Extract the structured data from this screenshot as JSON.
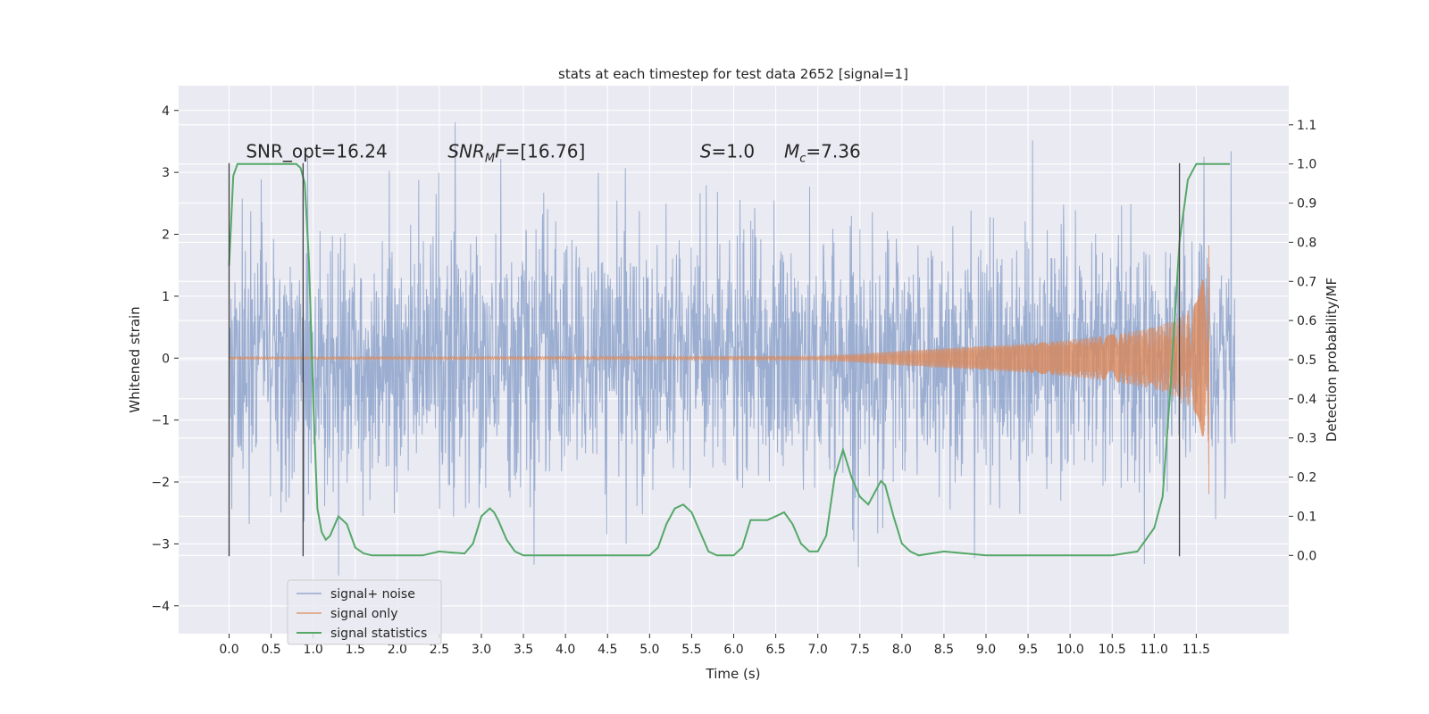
{
  "chart_data": {
    "type": "line",
    "title": "stats at each timestep for test data 2652 [signal=1]",
    "xlabel": "Time (s)",
    "ylabel_left": "Whitened strain",
    "ylabel_right": "Detection probability/MF",
    "xlim": [
      -0.6,
      12.6
    ],
    "ylim_left": [
      -4.45,
      4.4
    ],
    "ylim_right": [
      -0.2,
      1.2
    ],
    "xticks": [
      0.0,
      0.5,
      1.0,
      1.5,
      2.0,
      2.5,
      3.0,
      3.5,
      4.0,
      4.5,
      5.0,
      5.5,
      6.0,
      6.5,
      7.0,
      7.5,
      8.0,
      8.5,
      9.0,
      9.5,
      10.0,
      10.5,
      11.0,
      11.5
    ],
    "xtick_labels": [
      "0.0",
      "0.5",
      "1.0",
      "1.5",
      "2.0",
      "2.5",
      "3.0",
      "3.5",
      "4.0",
      "4.5",
      "5.0",
      "5.5",
      "6.0",
      "6.5",
      "7.0",
      "7.5",
      "8.0",
      "8.5",
      "9.0",
      "9.5",
      "10.0",
      "10.5",
      "11.0",
      "11.5"
    ],
    "yticks_left": [
      -4,
      -3,
      -2,
      -1,
      0,
      1,
      2,
      3,
      4
    ],
    "ytick_labels_left": [
      "−4",
      "−3",
      "−2",
      "−1",
      "0",
      "1",
      "2",
      "3",
      "4"
    ],
    "yticks_right": [
      0.0,
      0.1,
      0.2,
      0.3,
      0.4,
      0.5,
      0.6,
      0.7,
      0.8,
      0.9,
      1.0,
      1.1
    ],
    "ytick_labels_right": [
      "0.0",
      "0.1",
      "0.2",
      "0.3",
      "0.4",
      "0.5",
      "0.6",
      "0.7",
      "0.8",
      "0.9",
      "1.0",
      "1.1"
    ],
    "grid": true,
    "legend_placement": "lower-left",
    "colors": {
      "background": "#eaeaf2",
      "grid": "#ffffff",
      "noise": "#4c72b0",
      "signal": "#dd8452",
      "stats": "#55a868",
      "vline": "#404040"
    },
    "annotations": [
      {
        "parts": [
          {
            "t": "SNR_opt=16.24",
            "i": false
          }
        ],
        "x": 0.2
      },
      {
        "parts": [
          {
            "t": "SNR",
            "i": true
          },
          {
            "t": "M",
            "i": true,
            "sub": true
          },
          {
            "t": "F",
            "i": true
          },
          {
            "t": "=[16.76]",
            "i": false
          }
        ],
        "x": 2.6
      },
      {
        "parts": [
          {
            "t": "S",
            "i": true
          },
          {
            "t": "=1.0",
            "i": false
          }
        ],
        "x": 5.6
      },
      {
        "parts": [
          {
            "t": "M",
            "i": true
          },
          {
            "t": "c",
            "i": true,
            "sub": true
          },
          {
            "t": "=7.36",
            "i": false
          }
        ],
        "x": 6.6
      }
    ],
    "annotation_y": 3.15,
    "vlines_x": [
      0.0,
      0.88,
      11.3
    ],
    "vline_ymin": -3.2,
    "vline_ymax": 3.15,
    "series": [
      {
        "name": "signal+ noise",
        "axis": "left",
        "t_start": 0.0,
        "t_end": 11.96,
        "sigma": 1.0,
        "peak_abs": 4.05
      },
      {
        "name": "signal only",
        "axis": "left",
        "envelope_t": [
          0.0,
          7.0,
          7.5,
          8.0,
          8.5,
          9.0,
          9.5,
          10.0,
          10.5,
          11.0,
          11.3,
          11.5,
          11.6,
          11.65
        ],
        "envelope_amp": [
          0.02,
          0.03,
          0.07,
          0.12,
          0.16,
          0.2,
          0.24,
          0.3,
          0.38,
          0.5,
          0.65,
          0.9,
          1.4,
          1.9
        ]
      },
      {
        "name": "signal statistics",
        "axis": "right",
        "x": [
          0.0,
          0.05,
          0.1,
          0.2,
          0.3,
          0.5,
          0.7,
          0.8,
          0.85,
          0.9,
          0.95,
          1.0,
          1.05,
          1.1,
          1.15,
          1.2,
          1.3,
          1.4,
          1.5,
          1.6,
          1.7,
          2.0,
          2.3,
          2.5,
          2.6,
          2.8,
          2.9,
          3.0,
          3.1,
          3.15,
          3.2,
          3.3,
          3.4,
          3.5,
          3.7,
          4.0,
          4.5,
          4.8,
          5.0,
          5.1,
          5.2,
          5.3,
          5.4,
          5.5,
          5.6,
          5.7,
          5.8,
          6.0,
          6.1,
          6.2,
          6.3,
          6.4,
          6.5,
          6.6,
          6.7,
          6.8,
          6.9,
          7.0,
          7.1,
          7.2,
          7.3,
          7.4,
          7.5,
          7.6,
          7.7,
          7.75,
          7.8,
          7.9,
          8.0,
          8.1,
          8.2,
          8.5,
          9.0,
          10.0,
          10.5,
          10.8,
          10.9,
          11.0,
          11.1,
          11.2,
          11.3,
          11.4,
          11.5,
          11.6,
          11.7,
          11.9
        ],
        "y": [
          0.74,
          0.97,
          1.0,
          1.0,
          1.0,
          1.0,
          1.0,
          1.0,
          0.99,
          0.95,
          0.75,
          0.4,
          0.12,
          0.06,
          0.04,
          0.05,
          0.1,
          0.08,
          0.02,
          0.005,
          0.0,
          0.0,
          0.0,
          0.01,
          0.008,
          0.005,
          0.03,
          0.1,
          0.12,
          0.11,
          0.09,
          0.04,
          0.01,
          0.0,
          0.0,
          0.0,
          0.0,
          0.0,
          0.0,
          0.02,
          0.08,
          0.12,
          0.13,
          0.11,
          0.06,
          0.01,
          0.0,
          0.0,
          0.02,
          0.09,
          0.09,
          0.09,
          0.1,
          0.11,
          0.08,
          0.03,
          0.01,
          0.01,
          0.05,
          0.2,
          0.27,
          0.2,
          0.15,
          0.13,
          0.17,
          0.19,
          0.18,
          0.1,
          0.03,
          0.01,
          0.0,
          0.01,
          0.0,
          0.0,
          0.0,
          0.01,
          0.04,
          0.07,
          0.15,
          0.45,
          0.8,
          0.96,
          1.0,
          1.0,
          1.0,
          1.0
        ]
      }
    ]
  }
}
